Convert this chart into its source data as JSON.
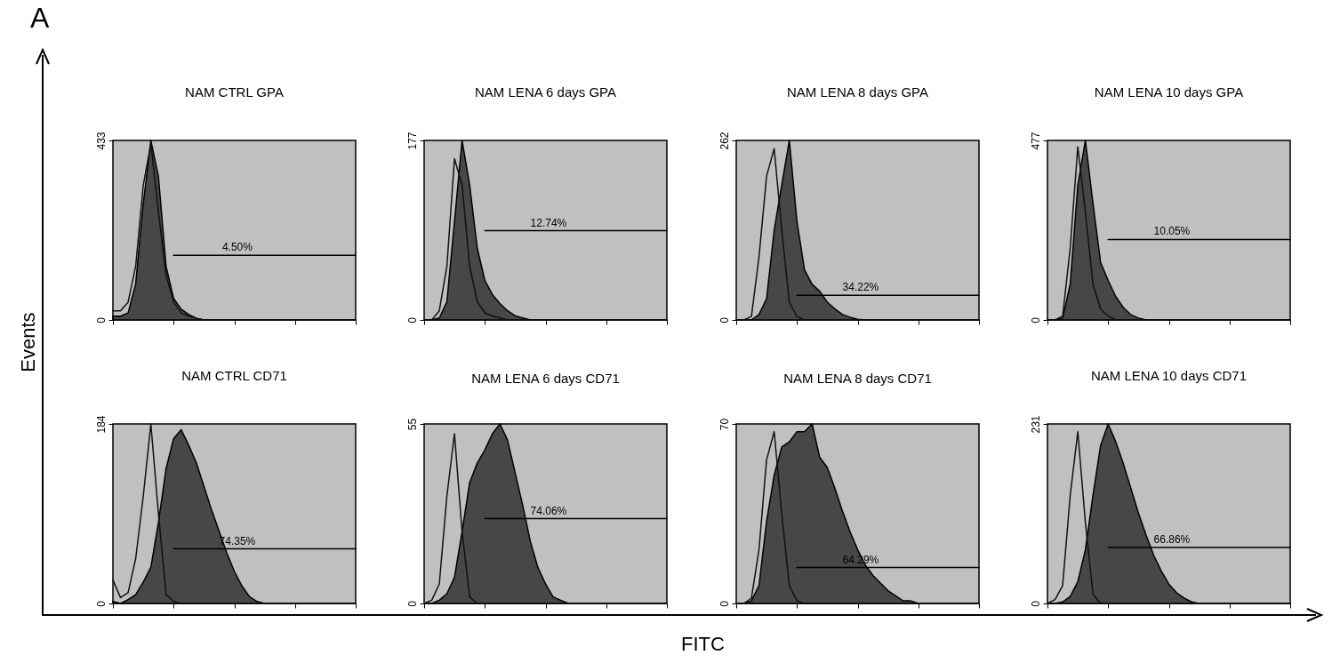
{
  "chart_data": [
    {
      "type": "area",
      "title": "NAM CTRL GPA",
      "tick_labels": "y",
      "ylim": [
        0,
        433
      ],
      "yticks": [
        0,
        433
      ],
      "categories": [
        null,
        null,
        null,
        null,
        null,
        null,
        null,
        null,
        null,
        null,
        null,
        null,
        null,
        null,
        null,
        null,
        null,
        null,
        null,
        null,
        null,
        null,
        null,
        null,
        null,
        null,
        null,
        null,
        null,
        null,
        null,
        null,
        null
      ],
      "series": [
        {
          "type": "area",
          "color": "#474747",
          "values": [
            9,
            9,
            17,
            87,
            281,
            433,
            346,
            130,
            52,
            26,
            13,
            4,
            0,
            0,
            0,
            0,
            0,
            0,
            0,
            0,
            0,
            0,
            0,
            0,
            0,
            0,
            0,
            0,
            0,
            0,
            0,
            0,
            0
          ]
        },
        {
          "type": "line",
          "color": "#111111",
          "values": [
            22,
            22,
            43,
            130,
            325,
            424,
            260,
            108,
            43,
            17,
            9,
            4,
            0,
            0,
            0,
            0,
            0,
            0,
            0,
            0,
            0,
            0,
            0,
            0,
            0,
            0,
            0,
            0,
            0,
            0,
            0,
            0,
            0
          ]
        },
        {
          "type": "line",
          "color": "#000000",
          "values": [
            null,
            null,
            null,
            null,
            null,
            null,
            null,
            null,
            156,
            156,
            156,
            156,
            156,
            156,
            156,
            156,
            156,
            156,
            156,
            156,
            156,
            156,
            156,
            156,
            156,
            156,
            156,
            156,
            156,
            156,
            156,
            156,
            156
          ]
        }
      ],
      "annotations": [
        {
          "text": "4.50%",
          "y": 156
        }
      ]
    },
    {
      "type": "area",
      "title": "NAM LENA 6 days GPA",
      "tick_labels": "y",
      "ylim": [
        0,
        177
      ],
      "yticks": [
        0,
        177
      ],
      "categories": [
        null,
        null,
        null,
        null,
        null,
        null,
        null,
        null,
        null,
        null,
        null,
        null,
        null,
        null,
        null,
        null,
        null,
        null,
        null,
        null,
        null,
        null,
        null,
        null,
        null,
        null,
        null,
        null,
        null,
        null,
        null,
        null,
        null
      ],
      "series": [
        {
          "type": "area",
          "color": "#474747",
          "values": [
            0,
            0,
            2,
            18,
            97,
            177,
            133,
            71,
            39,
            25,
            16,
            9,
            4,
            2,
            0,
            0,
            0,
            0,
            0,
            0,
            0,
            0,
            0,
            0,
            0,
            0,
            0,
            0,
            0,
            0,
            0,
            0,
            0
          ]
        },
        {
          "type": "line",
          "color": "#111111",
          "values": [
            0,
            0,
            9,
            53,
            159,
            133,
            53,
            18,
            7,
            4,
            2,
            0,
            0,
            0,
            0,
            0,
            0,
            0,
            0,
            0,
            0,
            0,
            0,
            0,
            0,
            0,
            0,
            0,
            0,
            0,
            0,
            0,
            0
          ]
        },
        {
          "type": "line",
          "color": "#000000",
          "values": [
            null,
            null,
            null,
            null,
            null,
            null,
            null,
            null,
            88,
            88,
            88,
            88,
            88,
            88,
            88,
            88,
            88,
            88,
            88,
            88,
            88,
            88,
            88,
            88,
            88,
            88,
            88,
            88,
            88,
            88,
            88,
            88,
            88
          ]
        }
      ],
      "annotations": [
        {
          "text": "12.74%",
          "y": 88
        }
      ]
    },
    {
      "type": "area",
      "title": "NAM LENA 8 days GPA",
      "tick_labels": "y",
      "ylim": [
        0,
        262
      ],
      "yticks": [
        0,
        262
      ],
      "categories": [
        null,
        null,
        null,
        null,
        null,
        null,
        null,
        null,
        null,
        null,
        null,
        null,
        null,
        null,
        null,
        null,
        null,
        null,
        null,
        null,
        null,
        null,
        null,
        null,
        null,
        null,
        null,
        null,
        null,
        null,
        null,
        null,
        null
      ],
      "series": [
        {
          "type": "area",
          "color": "#474747",
          "values": [
            0,
            0,
            0,
            8,
            31,
            131,
            197,
            262,
            144,
            73,
            52,
            42,
            26,
            16,
            8,
            4,
            1,
            0,
            0,
            0,
            0,
            0,
            0,
            0,
            0,
            0,
            0,
            0,
            0,
            0,
            0,
            0,
            0
          ]
        },
        {
          "type": "line",
          "color": "#111111",
          "values": [
            0,
            0,
            5,
            92,
            210,
            250,
            131,
            26,
            5,
            0,
            0,
            0,
            0,
            0,
            0,
            0,
            0,
            0,
            0,
            0,
            0,
            0,
            0,
            0,
            0,
            0,
            0,
            0,
            0,
            0,
            0,
            0,
            0
          ]
        },
        {
          "type": "line",
          "color": "#000000",
          "values": [
            null,
            null,
            null,
            null,
            null,
            null,
            null,
            null,
            36,
            36,
            36,
            36,
            36,
            36,
            36,
            36,
            36,
            36,
            36,
            36,
            36,
            36,
            36,
            36,
            36,
            36,
            36,
            36,
            36,
            36,
            36,
            36,
            36
          ]
        }
      ],
      "annotations": [
        {
          "text": "34.22%",
          "y": 36
        }
      ]
    },
    {
      "type": "area",
      "title": "NAM LENA 10 days GPA",
      "tick_labels": "y",
      "ylim": [
        0,
        477
      ],
      "yticks": [
        0,
        477
      ],
      "categories": [
        null,
        null,
        null,
        null,
        null,
        null,
        null,
        null,
        null,
        null,
        null,
        null,
        null,
        null,
        null,
        null,
        null,
        null,
        null,
        null,
        null,
        null,
        null,
        null,
        null,
        null,
        null,
        null,
        null,
        null,
        null,
        null,
        null
      ],
      "series": [
        {
          "type": "area",
          "color": "#474747",
          "values": [
            0,
            0,
            5,
            95,
            358,
            477,
            310,
            153,
            105,
            62,
            33,
            14,
            5,
            0,
            0,
            0,
            0,
            0,
            0,
            0,
            0,
            0,
            0,
            0,
            0,
            0,
            0,
            0,
            0,
            0,
            0,
            0,
            0
          ]
        },
        {
          "type": "line",
          "color": "#111111",
          "values": [
            0,
            0,
            10,
            191,
            460,
            286,
            95,
            29,
            10,
            0,
            0,
            0,
            0,
            0,
            0,
            0,
            0,
            0,
            0,
            0,
            0,
            0,
            0,
            0,
            0,
            0,
            0,
            0,
            0,
            0,
            0,
            0,
            0
          ]
        },
        {
          "type": "line",
          "color": "#000000",
          "values": [
            null,
            null,
            null,
            null,
            null,
            null,
            null,
            null,
            214,
            214,
            214,
            214,
            214,
            214,
            214,
            214,
            214,
            214,
            214,
            214,
            214,
            214,
            214,
            214,
            214,
            214,
            214,
            214,
            214,
            214,
            214,
            214,
            214
          ]
        }
      ],
      "annotations": [
        {
          "text": "10.05%",
          "y": 214
        }
      ]
    },
    {
      "type": "area",
      "title": "NAM CTRL CD71",
      "tick_labels": "y",
      "ylim": [
        0,
        184
      ],
      "yticks": [
        0,
        184
      ],
      "categories": [
        null,
        null,
        null,
        null,
        null,
        null,
        null,
        null,
        null,
        null,
        null,
        null,
        null,
        null,
        null,
        null,
        null,
        null,
        null,
        null,
        null,
        null,
        null,
        null,
        null,
        null,
        null,
        null,
        null,
        null,
        null,
        null,
        null
      ],
      "series": [
        {
          "type": "area",
          "color": "#474747",
          "values": [
            2,
            0,
            4,
            9,
            22,
            37,
            83,
            138,
            169,
            178,
            162,
            144,
            120,
            96,
            74,
            52,
            33,
            18,
            7,
            2,
            0,
            0,
            0,
            0,
            0,
            0,
            0,
            0,
            0,
            0,
            0,
            0,
            0
          ]
        },
        {
          "type": "line",
          "color": "#111111",
          "values": [
            24,
            6,
            11,
            46,
            110,
            184,
            92,
            9,
            2,
            0,
            0,
            0,
            0,
            0,
            0,
            0,
            0,
            0,
            0,
            0,
            0,
            0,
            0,
            0,
            0,
            0,
            0,
            0,
            0,
            0,
            0,
            0,
            0
          ]
        },
        {
          "type": "line",
          "color": "#000000",
          "values": [
            null,
            null,
            null,
            null,
            null,
            null,
            null,
            null,
            56,
            56,
            56,
            56,
            56,
            56,
            56,
            56,
            56,
            56,
            56,
            56,
            56,
            56,
            56,
            56,
            56,
            56,
            56,
            56,
            56,
            56,
            56,
            56,
            56
          ]
        }
      ],
      "annotations": [
        {
          "text": "74.35%",
          "y": 56
        }
      ]
    },
    {
      "type": "area",
      "title": "NAM LENA 6 days CD71",
      "tick_labels": "y",
      "ylim": [
        0,
        55
      ],
      "yticks": [
        0,
        55
      ],
      "categories": [
        null,
        null,
        null,
        null,
        null,
        null,
        null,
        null,
        null,
        null,
        null,
        null,
        null,
        null,
        null,
        null,
        null,
        null,
        null,
        null,
        null,
        null,
        null,
        null,
        null,
        null,
        null,
        null,
        null,
        null,
        null,
        null,
        null
      ],
      "series": [
        {
          "type": "area",
          "color": "#474747",
          "values": [
            0,
            0,
            1,
            3,
            8,
            22,
            37,
            43,
            47,
            52,
            55,
            50,
            40,
            30,
            19,
            11,
            6,
            2,
            1,
            0,
            0,
            0,
            0,
            0,
            0,
            0,
            0,
            0,
            0,
            0,
            0,
            0,
            0
          ]
        },
        {
          "type": "line",
          "color": "#111111",
          "values": [
            0,
            1,
            6,
            33,
            52,
            22,
            2,
            0,
            0,
            0,
            0,
            0,
            0,
            0,
            0,
            0,
            0,
            0,
            0,
            0,
            0,
            0,
            0,
            0,
            0,
            0,
            0,
            0,
            0,
            0,
            0,
            0,
            0
          ]
        },
        {
          "type": "line",
          "color": "#000000",
          "values": [
            null,
            null,
            null,
            null,
            null,
            null,
            null,
            null,
            26,
            26,
            26,
            26,
            26,
            26,
            26,
            26,
            26,
            26,
            26,
            26,
            26,
            26,
            26,
            26,
            26,
            26,
            26,
            26,
            26,
            26,
            26,
            26,
            26
          ]
        }
      ],
      "annotations": [
        {
          "text": "74.06%",
          "y": 26
        }
      ]
    },
    {
      "type": "area",
      "title": "NAM LENA 8 days CD71",
      "tick_labels": "y",
      "ylim": [
        0,
        70
      ],
      "yticks": [
        0,
        70
      ],
      "categories": [
        null,
        null,
        null,
        null,
        null,
        null,
        null,
        null,
        null,
        null,
        null,
        null,
        null,
        null,
        null,
        null,
        null,
        null,
        null,
        null,
        null,
        null,
        null,
        null,
        null,
        null,
        null,
        null,
        null,
        null,
        null,
        null,
        null
      ],
      "series": [
        {
          "type": "area",
          "color": "#474747",
          "values": [
            0,
            0,
            1,
            7,
            32,
            50,
            61,
            63,
            67,
            67,
            70,
            57,
            53,
            45,
            36,
            28,
            21,
            15,
            11,
            8,
            5,
            3,
            1,
            1,
            0,
            0,
            0,
            0,
            0,
            0,
            0,
            0,
            0
          ]
        },
        {
          "type": "line",
          "color": "#111111",
          "values": [
            0,
            0,
            2,
            21,
            56,
            67,
            35,
            7,
            1,
            0,
            0,
            0,
            0,
            0,
            0,
            0,
            0,
            0,
            0,
            0,
            0,
            0,
            0,
            0,
            0,
            0,
            0,
            0,
            0,
            0,
            0,
            0,
            0
          ]
        },
        {
          "type": "line",
          "color": "#000000",
          "values": [
            null,
            null,
            null,
            null,
            null,
            null,
            null,
            null,
            14,
            14,
            14,
            14,
            14,
            14,
            14,
            14,
            14,
            14,
            14,
            14,
            14,
            14,
            14,
            14,
            14,
            14,
            14,
            14,
            14,
            14,
            14,
            14,
            14
          ]
        }
      ],
      "annotations": [
        {
          "text": "64.29%",
          "y": 14
        }
      ]
    },
    {
      "type": "area",
      "title": "NAM LENA 10 days CD71",
      "tick_labels": "y",
      "ylim": [
        0,
        231
      ],
      "yticks": [
        0,
        231
      ],
      "categories": [
        null,
        null,
        null,
        null,
        null,
        null,
        null,
        null,
        null,
        null,
        null,
        null,
        null,
        null,
        null,
        null,
        null,
        null,
        null,
        null,
        null,
        null,
        null,
        null,
        null,
        null,
        null,
        null,
        null,
        null,
        null,
        null,
        null
      ],
      "series": [
        {
          "type": "area",
          "color": "#474747",
          "values": [
            0,
            0,
            2,
            9,
            28,
            69,
            139,
            203,
            231,
            208,
            180,
            148,
            116,
            88,
            62,
            42,
            25,
            14,
            7,
            2,
            0,
            0,
            0,
            0,
            0,
            0,
            0,
            0,
            0,
            0,
            0,
            0,
            0
          ]
        },
        {
          "type": "line",
          "color": "#111111",
          "values": [
            0,
            5,
            23,
            139,
            221,
            104,
            12,
            0,
            0,
            0,
            0,
            0,
            0,
            0,
            0,
            0,
            0,
            0,
            0,
            0,
            0,
            0,
            0,
            0,
            0,
            0,
            0,
            0,
            0,
            0,
            0,
            0,
            0
          ]
        },
        {
          "type": "line",
          "color": "#000000",
          "values": [
            null,
            null,
            null,
            null,
            null,
            null,
            null,
            null,
            72,
            72,
            72,
            72,
            72,
            72,
            72,
            72,
            72,
            72,
            72,
            72,
            72,
            72,
            72,
            72,
            72,
            72,
            72,
            72,
            72,
            72,
            72,
            72,
            72
          ]
        }
      ],
      "annotations": [
        {
          "text": "66.86%",
          "y": 72
        }
      ]
    },
    {
      "type": "other",
      "xlabel": "FITC",
      "ylabel": "Events",
      "annotations": [
        "A"
      ]
    }
  ]
}
